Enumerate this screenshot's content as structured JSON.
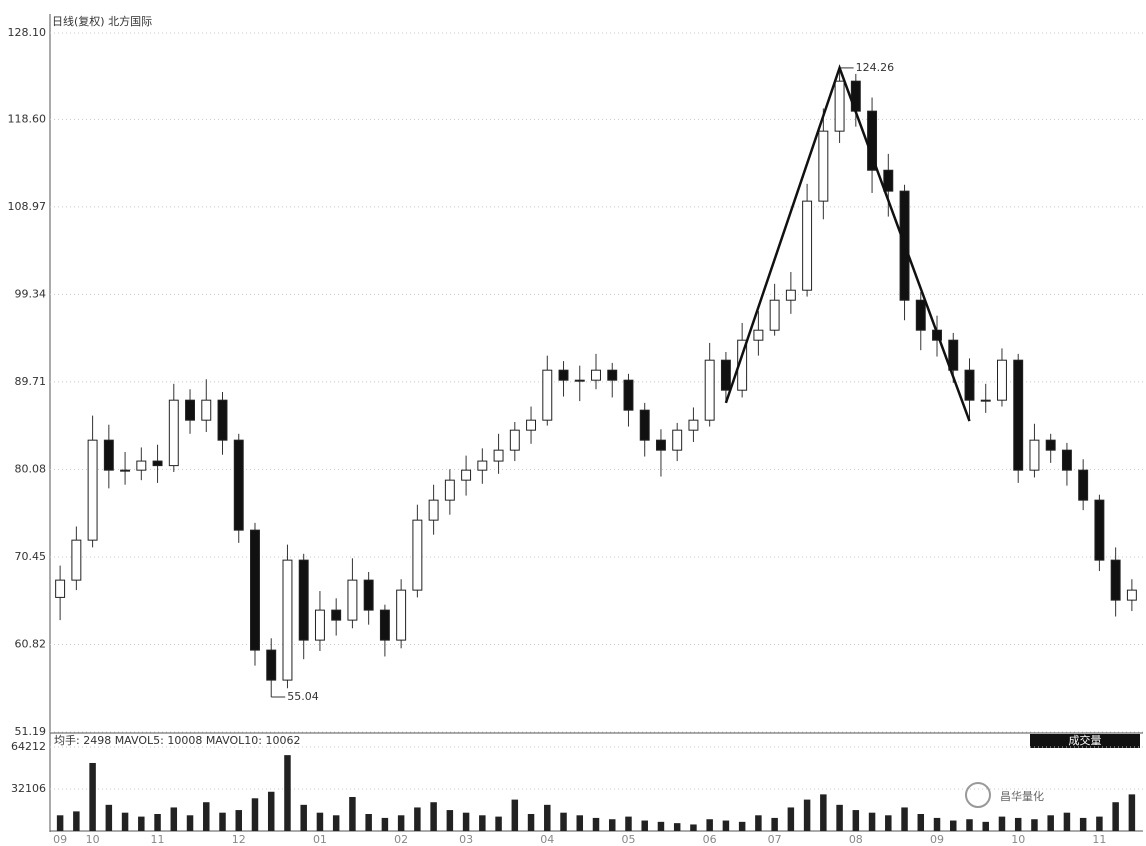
{
  "chart_data": {
    "type": "candlestick",
    "title": "日线(复权) 北方国际",
    "categories": [
      "09",
      null,
      "10",
      null,
      null,
      null,
      "11",
      null,
      null,
      null,
      null,
      "12",
      null,
      null,
      null,
      null,
      "01",
      null,
      null,
      null,
      null,
      "02",
      null,
      null,
      null,
      "03",
      null,
      null,
      null,
      null,
      "04",
      null,
      null,
      null,
      null,
      "05",
      null,
      null,
      null,
      null,
      "06",
      null,
      null,
      null,
      "07",
      null,
      null,
      null,
      null,
      "08",
      null,
      null,
      null,
      null,
      "09",
      null,
      null,
      null,
      null,
      "10",
      null,
      null,
      null,
      null,
      "11",
      null,
      null
    ],
    "open": [
      66.0,
      67.9,
      72.3,
      83.3,
      80.0,
      80.0,
      81.0,
      80.5,
      87.7,
      85.5,
      87.7,
      83.3,
      73.4,
      60.2,
      56.9,
      70.1,
      61.3,
      64.6,
      63.5,
      67.9,
      64.6,
      61.3,
      66.8,
      74.5,
      76.7,
      78.9,
      80.0,
      81.0,
      82.2,
      84.4,
      85.5,
      91.0,
      89.9,
      89.9,
      91.0,
      89.9,
      86.6,
      83.3,
      82.2,
      84.4,
      85.5,
      92.1,
      88.8,
      94.3,
      95.4,
      98.7,
      99.8,
      109.6,
      117.3,
      122.8,
      119.5,
      113.0,
      110.7,
      98.7,
      95.4,
      94.3,
      91.0,
      87.7,
      87.7,
      92.1,
      80.0,
      83.3,
      82.2,
      80.0,
      76.7,
      70.1,
      65.7
    ],
    "high": [
      69.5,
      73.8,
      86.0,
      85.0,
      82.0,
      82.5,
      82.8,
      89.5,
      88.9,
      90.0,
      88.6,
      84.0,
      74.2,
      61.5,
      71.8,
      70.8,
      66.7,
      65.9,
      70.3,
      68.8,
      65.2,
      68.0,
      76.2,
      78.4,
      80.1,
      81.6,
      82.4,
      84.0,
      85.3,
      87.0,
      92.6,
      92.0,
      91.5,
      92.8,
      91.8,
      90.6,
      87.4,
      84.5,
      85.2,
      86.9,
      94.0,
      93.0,
      96.2,
      97.5,
      100.5,
      101.8,
      111.5,
      119.8,
      124.26,
      123.6,
      121.0,
      114.8,
      111.4,
      99.6,
      97.0,
      95.1,
      92.3,
      89.5,
      93.4,
      92.8,
      85.1,
      84.0,
      83.0,
      81.2,
      77.3,
      71.5,
      68.0
    ],
    "low": [
      63.5,
      66.8,
      71.5,
      78.0,
      78.4,
      78.9,
      78.6,
      79.8,
      84.0,
      84.2,
      81.7,
      72.0,
      58.5,
      55.04,
      56.0,
      59.2,
      60.1,
      61.8,
      62.6,
      63.0,
      59.5,
      60.4,
      66.0,
      72.9,
      75.1,
      77.2,
      78.5,
      79.6,
      81.0,
      82.9,
      84.9,
      88.1,
      87.6,
      88.9,
      88.0,
      84.8,
      81.5,
      79.3,
      81.0,
      83.1,
      84.8,
      87.4,
      88.0,
      92.6,
      94.8,
      97.2,
      99.1,
      107.6,
      116.0,
      117.8,
      110.5,
      107.9,
      96.5,
      93.2,
      92.5,
      89.6,
      85.4,
      86.3,
      87.0,
      78.6,
      79.2,
      80.8,
      78.3,
      75.6,
      68.9,
      63.9,
      64.5
    ],
    "close": [
      67.9,
      72.3,
      83.3,
      80.0,
      80.0,
      81.0,
      80.5,
      87.7,
      85.5,
      87.7,
      83.3,
      73.4,
      60.2,
      56.9,
      70.1,
      61.3,
      64.6,
      63.5,
      67.9,
      64.6,
      61.3,
      66.8,
      74.5,
      76.7,
      78.9,
      80.0,
      81.0,
      82.2,
      84.4,
      85.5,
      91.0,
      89.9,
      89.9,
      91.0,
      89.9,
      86.6,
      83.3,
      82.2,
      84.4,
      85.5,
      92.1,
      88.8,
      94.3,
      95.4,
      98.7,
      99.8,
      109.6,
      117.3,
      122.8,
      119.5,
      113.0,
      110.7,
      98.7,
      95.4,
      94.3,
      91.0,
      87.7,
      87.7,
      92.1,
      80.0,
      83.3,
      82.2,
      80.0,
      76.7,
      70.1,
      65.7,
      66.8
    ],
    "ylim": [
      51.19,
      128.1
    ],
    "yticks": [
      51.19,
      60.82,
      70.45,
      80.08,
      89.71,
      99.34,
      108.97,
      {
        "value": 118.6,
        "label": "118.60"
      },
      {
        "value": 128.1,
        "label": "128.10"
      }
    ],
    "grid": true,
    "up_color": "#ffffff",
    "down_color": "#111111",
    "volume": {
      "label": "均手: 2498  MAVOL5: 10008  MAVOL10: 10062",
      "button": "成交量",
      "values": [
        12000,
        15000,
        52000,
        20000,
        14000,
        11000,
        13000,
        18000,
        12000,
        22000,
        14000,
        16000,
        25000,
        30000,
        58000,
        20000,
        14000,
        12000,
        26000,
        13000,
        10000,
        12000,
        18000,
        22000,
        16000,
        14000,
        12000,
        11000,
        24000,
        13000,
        20000,
        14000,
        12000,
        10000,
        9000,
        11000,
        8000,
        7000,
        6000,
        5000,
        9000,
        8000,
        7000,
        12000,
        10000,
        18000,
        24000,
        28000,
        20000,
        16000,
        14000,
        12000,
        18000,
        13000,
        10000,
        8000,
        9000,
        7000,
        11000,
        10000,
        9000,
        12000,
        14000,
        10000,
        11000,
        22000,
        28000
      ],
      "ylim": [
        0,
        64212
      ],
      "yticks": [
        32106,
        64212
      ],
      "color": "#222222"
    },
    "watermark": "昌华量化"
  }
}
